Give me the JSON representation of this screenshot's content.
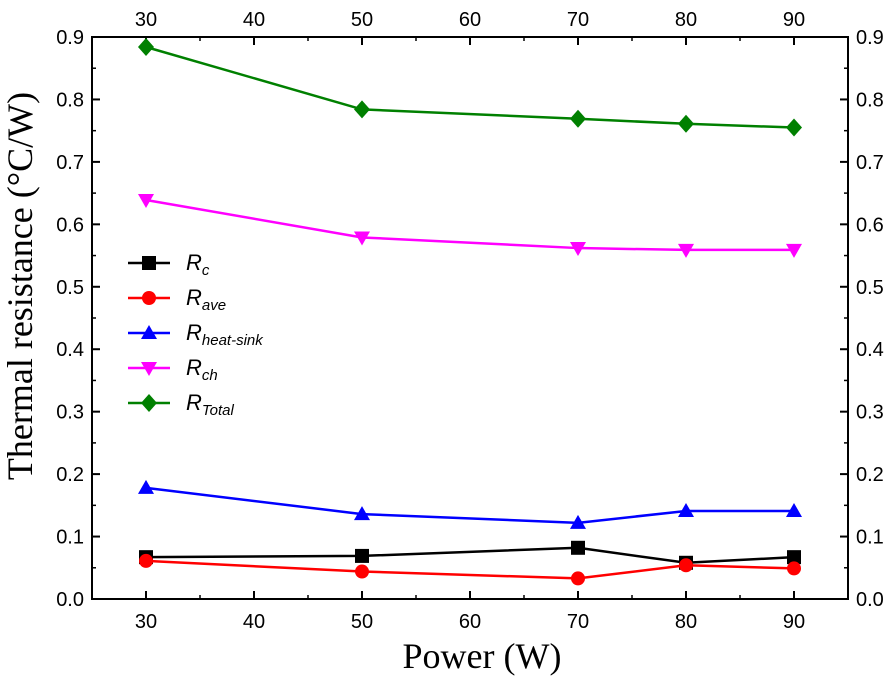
{
  "chart_data": {
    "type": "line",
    "xlabel": "Power (W)",
    "ylabel": "Thermal resistance (°C/W)",
    "xlim": [
      25,
      95
    ],
    "ylim": [
      0,
      0.9
    ],
    "x_ticks": [
      30,
      40,
      50,
      60,
      70,
      80,
      90
    ],
    "y_ticks": [
      0.0,
      0.1,
      0.2,
      0.3,
      0.4,
      0.5,
      0.6,
      0.7,
      0.8,
      0.9
    ],
    "x_tick_labels": [
      "30",
      "40",
      "50",
      "60",
      "70",
      "80",
      "90"
    ],
    "y_tick_labels": [
      "0.0",
      "0.1",
      "0.2",
      "0.3",
      "0.4",
      "0.5",
      "0.6",
      "0.7",
      "0.8",
      "0.9"
    ],
    "grid": false,
    "legend_position": "center-left",
    "x": [
      30,
      50,
      70,
      80,
      90
    ],
    "series": [
      {
        "name": "R",
        "subscript": "c",
        "color": "#000000",
        "marker": "square",
        "values": [
          0.067,
          0.069,
          0.082,
          0.058,
          0.067
        ]
      },
      {
        "name": "R",
        "subscript": "ave",
        "color": "#ff0000",
        "marker": "circle",
        "values": [
          0.061,
          0.044,
          0.033,
          0.054,
          0.049
        ]
      },
      {
        "name": "R",
        "subscript": "heat-sink",
        "color": "#0000ff",
        "marker": "triangle-up",
        "values": [
          0.178,
          0.136,
          0.122,
          0.141,
          0.141
        ]
      },
      {
        "name": "R",
        "subscript": "ch",
        "color": "#ff00ff",
        "marker": "triangle-down",
        "values": [
          0.639,
          0.579,
          0.562,
          0.559,
          0.559
        ]
      },
      {
        "name": "R",
        "subscript": "Total",
        "color": "#008000",
        "marker": "diamond",
        "values": [
          0.884,
          0.784,
          0.769,
          0.761,
          0.755
        ]
      }
    ]
  }
}
